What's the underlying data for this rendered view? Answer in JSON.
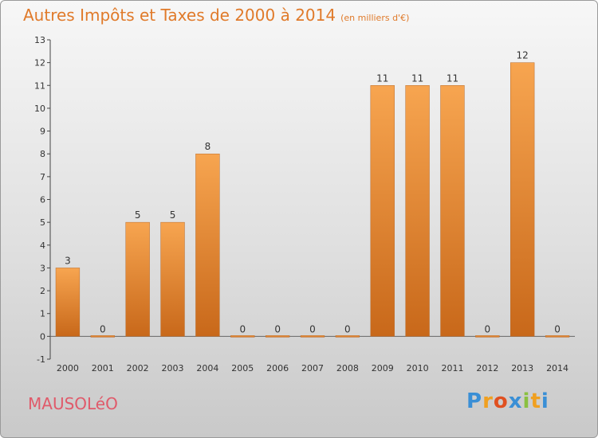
{
  "chart_data": {
    "type": "bar",
    "title": "Autres Impôts et Taxes de 2000 à 2014",
    "subtitle": "(en milliers d'€)",
    "categories": [
      "2000",
      "2001",
      "2002",
      "2003",
      "2004",
      "2005",
      "2006",
      "2007",
      "2008",
      "2009",
      "2010",
      "2011",
      "2012",
      "2013",
      "2014"
    ],
    "values": [
      3,
      0,
      5,
      5,
      8,
      0,
      0,
      0,
      0,
      11,
      11,
      11,
      0,
      12,
      0
    ],
    "ylim": [
      -1,
      13
    ],
    "yticks": [
      -1,
      0,
      1,
      2,
      3,
      4,
      5,
      6,
      7,
      8,
      9,
      10,
      11,
      12,
      13
    ],
    "grid": false,
    "bar_color": "#f0923a"
  },
  "place_name": "MAUSOLéO",
  "logo": {
    "letters": [
      "P",
      "r",
      "o",
      "x",
      "i",
      "t",
      "i"
    ],
    "colors": [
      "#3a8fd6",
      "#f0a020",
      "#e05020",
      "#3a8fd6",
      "#8ac040",
      "#f0a020",
      "#3a8fd6"
    ]
  }
}
